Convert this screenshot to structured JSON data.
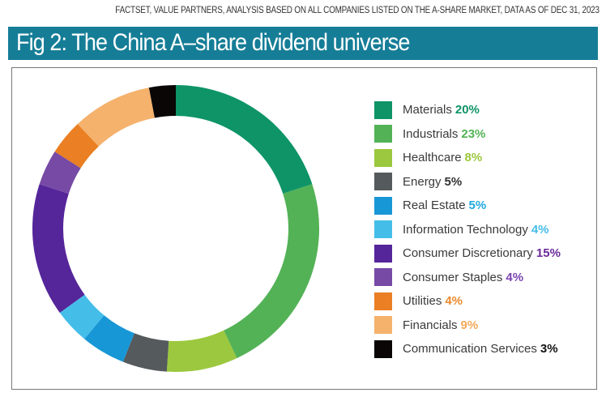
{
  "source": "FACTSET, VALUE PARTNERS, ANALYSIS BASED ON ALL COMPANIES LISTED ON THE A-SHARE MARKET, DATA AS OF DEC 31, 2023",
  "title": "Fig 2: The China A–share dividend universe",
  "chart_data": {
    "type": "pie",
    "subtype": "donut",
    "title": "Fig 2: The China A–share dividend universe",
    "legend_position": "right",
    "slices": [
      {
        "label": "Materials",
        "value": 20,
        "pct_label": "20%",
        "color": "#0e9467",
        "pct_color": "#0e9467"
      },
      {
        "label": "Industrials",
        "value": 23,
        "pct_label": "23%",
        "color": "#53b256",
        "pct_color": "#53b256"
      },
      {
        "label": "Healthcare",
        "value": 8,
        "pct_label": "8%",
        "color": "#9bc83e",
        "pct_color": "#9bc83e"
      },
      {
        "label": "Energy",
        "value": 5,
        "pct_label": "5%",
        "color": "#555a5d",
        "pct_color": "#333333"
      },
      {
        "label": "Real Estate",
        "value": 5,
        "pct_label": "5%",
        "color": "#1797d6",
        "pct_color": "#1fa8e0"
      },
      {
        "label": "Information Technology",
        "value": 4,
        "pct_label": "4%",
        "color": "#45bde9",
        "pct_color": "#45bde9"
      },
      {
        "label": "Consumer Discretionary",
        "value": 15,
        "pct_label": "15%",
        "color": "#55259a",
        "pct_color": "#6a2c9a"
      },
      {
        "label": "Consumer Staples",
        "value": 4,
        "pct_label": "4%",
        "color": "#774aa6",
        "pct_color": "#7a44b0"
      },
      {
        "label": "Utilities",
        "value": 4,
        "pct_label": "4%",
        "color": "#ea7f23",
        "pct_color": "#ea8a2e"
      },
      {
        "label": "Financials",
        "value": 9,
        "pct_label": "9%",
        "color": "#f4b26d",
        "pct_color": "#f4a95a"
      },
      {
        "label": "Communication Services",
        "value": 3,
        "pct_label": "3%",
        "color": "#0a0606",
        "pct_color": "#111111"
      }
    ]
  }
}
